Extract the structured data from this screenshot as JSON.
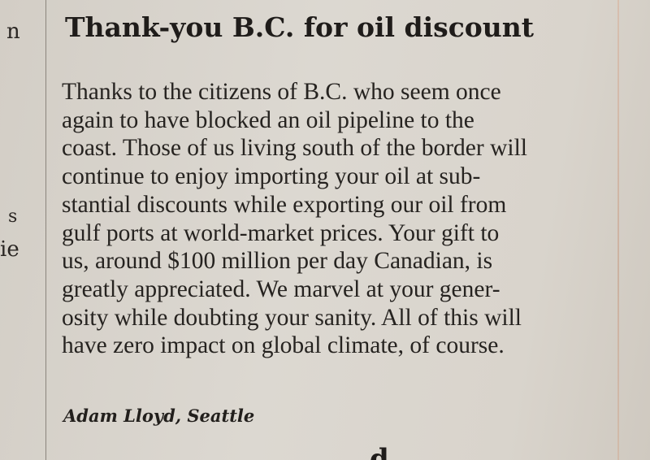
{
  "left_column": {
    "fragments": [
      "n",
      "s",
      "ie"
    ]
  },
  "article": {
    "headline": "Thank-you B.C. for oil discount",
    "lines": [
      "Thanks to the citizens of B.C. who seem once",
      "again to have blocked an oil pipeline to the",
      "coast. Those of us living south of the border will",
      "continue to enjoy importing your oil at sub-",
      "stantial discounts while exporting our oil from",
      "gulf ports at world-market prices. Your gift to",
      "us, around $100 million per day Canadian, is",
      "greatly appreciated. We marvel at your gener-",
      "osity while doubting your sanity. All of this will",
      "have zero impact on global climate, of course."
    ],
    "byline": "Adam Lloyd, Seattle"
  },
  "next_article": {
    "headline_fragment": "d"
  }
}
